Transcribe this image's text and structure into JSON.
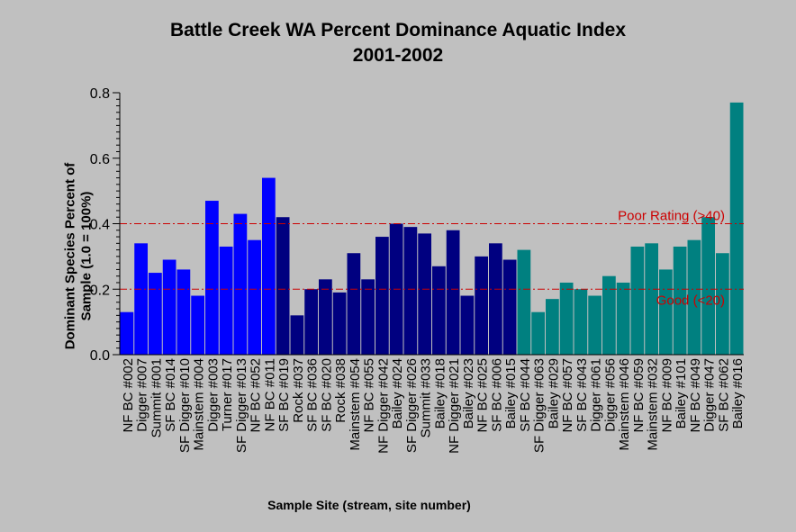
{
  "chart_data": {
    "type": "bar",
    "title": "Battle Creek WA Percent Dominance Aquatic Index",
    "subtitle": "2001-2002",
    "xlabel": "Sample Site (stream, site number)",
    "ylabel_line1": "Dominant Species Percent of",
    "ylabel_line2": "Sample (1.0 = 100%)",
    "ylim": [
      0,
      0.8
    ],
    "yticks": [
      "0.0",
      "0.2",
      "0.4",
      "0.6",
      "0.8"
    ],
    "grid": false,
    "colors": {
      "group1": "#0000ff",
      "group2": "#000080",
      "group3": "#008080",
      "reference": "#cc0000",
      "plot_bg": "#c0c0c0"
    },
    "categories": [
      "NF BC #002",
      "Digger #007",
      "Summit #001",
      "SF BC #014",
      "SF Digger #010",
      "Mainstem #004",
      "Digger #003",
      "Turner #017",
      "SF Digger #013",
      "NF BC #052",
      "NF BC #011",
      "SF BC #019",
      "Rock #037",
      "SF BC #036",
      "SF BC #020",
      "Rock #038",
      "Mainstem #054",
      "NF BC #055",
      "NF Digger #042",
      "Bailey #024",
      "SF Digger #026",
      "Summit #033",
      "Bailey #018",
      "NF Digger #021",
      "Bailey #023",
      "NF BC #025",
      "SF BC #006",
      "Bailey #015",
      "SF BC #044",
      "SF Digger #063",
      "Bailey #029",
      "NF BC #057",
      "SF BC #043",
      "Digger #061",
      "Digger #056",
      "Mainstem #046",
      "NF BC #059",
      "Mainstem #032",
      "NF BC #009",
      "Bailey #101",
      "NF BC #049",
      "Digger #047",
      "SF BC #062",
      "Bailey #016"
    ],
    "values": [
      0.13,
      0.34,
      0.25,
      0.29,
      0.26,
      0.18,
      0.47,
      0.33,
      0.43,
      0.35,
      0.54,
      0.42,
      0.12,
      0.2,
      0.23,
      0.19,
      0.31,
      0.23,
      0.36,
      0.4,
      0.39,
      0.37,
      0.27,
      0.38,
      0.18,
      0.3,
      0.34,
      0.29,
      0.32,
      0.13,
      0.17,
      0.22,
      0.2,
      0.18,
      0.24,
      0.22,
      0.33,
      0.34,
      0.26,
      0.33,
      0.35,
      0.42,
      0.31,
      0.77
    ],
    "groups": [
      1,
      1,
      1,
      1,
      1,
      1,
      1,
      1,
      1,
      1,
      1,
      2,
      2,
      2,
      2,
      2,
      2,
      2,
      2,
      2,
      2,
      2,
      2,
      2,
      2,
      2,
      2,
      2,
      3,
      3,
      3,
      3,
      3,
      3,
      3,
      3,
      3,
      3,
      3,
      3,
      3,
      3,
      3,
      3
    ],
    "reference_lines": [
      {
        "value": 0.4,
        "label": "Poor Rating  (>40)"
      },
      {
        "value": 0.2,
        "label": "Good  (<20)"
      }
    ]
  }
}
